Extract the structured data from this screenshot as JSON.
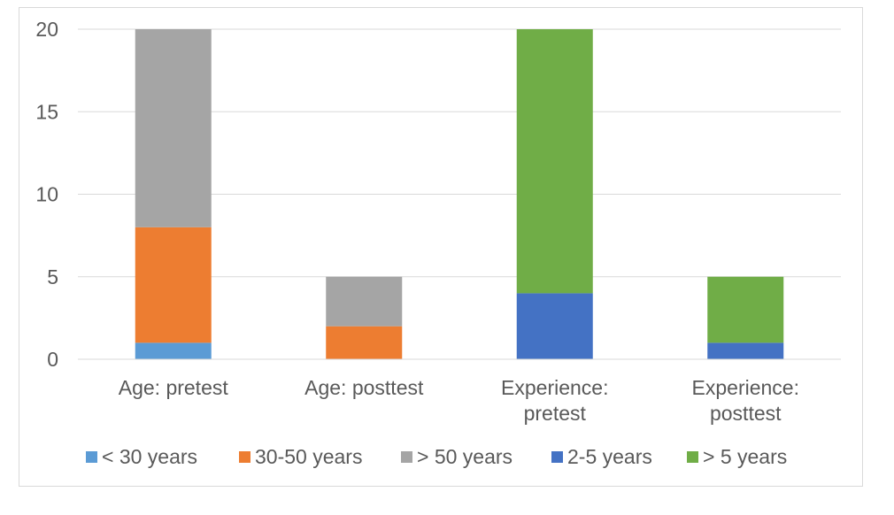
{
  "chart_data": {
    "type": "bar",
    "stacked": true,
    "title": "",
    "xlabel": "",
    "ylabel": "",
    "ylim": [
      0,
      20
    ],
    "yticks": [
      0,
      5,
      10,
      15,
      20
    ],
    "grid": true,
    "legend_position": "bottom",
    "categories": [
      [
        "Age: pretest"
      ],
      [
        "Age: posttest"
      ],
      [
        "Experience:",
        "pretest"
      ],
      [
        "Experience:",
        "posttest"
      ]
    ],
    "series": [
      {
        "name": "< 30 years",
        "color": "#5B9BD5",
        "values": [
          1,
          0,
          0,
          0
        ]
      },
      {
        "name": "30-50 years",
        "color": "#ED7D31",
        "values": [
          7,
          2,
          0,
          0
        ]
      },
      {
        "name": "> 50 years",
        "color": "#A5A5A5",
        "values": [
          12,
          3,
          0,
          0
        ]
      },
      {
        "name": "2-5 years",
        "color": "#4472C4",
        "values": [
          0,
          0,
          4,
          1
        ]
      },
      {
        "name": "> 5 years",
        "color": "#70AD47",
        "values": [
          0,
          0,
          16,
          4
        ]
      }
    ]
  }
}
